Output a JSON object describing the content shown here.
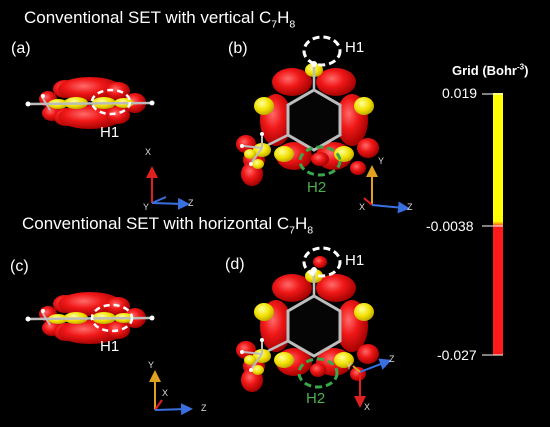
{
  "headings": {
    "top": {
      "prefix": "Conventional SET with vertical C",
      "sub1": "7",
      "mid": "H",
      "sub2": "8"
    },
    "bottom": {
      "prefix": "Conventional SET with horizontal C",
      "sub1": "7",
      "mid": "H",
      "sub2": "8"
    }
  },
  "panels": {
    "a": {
      "label": "(a)",
      "site": "H1"
    },
    "b": {
      "label": "(b)",
      "site_top": "H1",
      "site_bottom": "H2"
    },
    "c": {
      "label": "(c)",
      "site": "H1"
    },
    "d": {
      "label": "(d)",
      "site_top": "H1",
      "site_bottom": "H2"
    }
  },
  "axes": {
    "x": "X",
    "y": "Y",
    "z": "Z"
  },
  "colorbar": {
    "title_prefix": "Grid (Bohr",
    "title_exponent": "-3",
    "title_suffix": ")",
    "max_label": "0.019",
    "mid_label": "-0.0038",
    "min_label": "-0.027",
    "colors": {
      "positive": "#ffff00",
      "negative": "#ff1a1a"
    }
  },
  "colors": {
    "positive_isosurface": "#f2e100",
    "negative_isosurface": "#e8141a",
    "h1_marker": "#ffffff",
    "h2_marker": "#3aa84a",
    "axis_x": "#e02020",
    "axis_y": "#e0a020",
    "axis_z": "#3a6fe0"
  }
}
